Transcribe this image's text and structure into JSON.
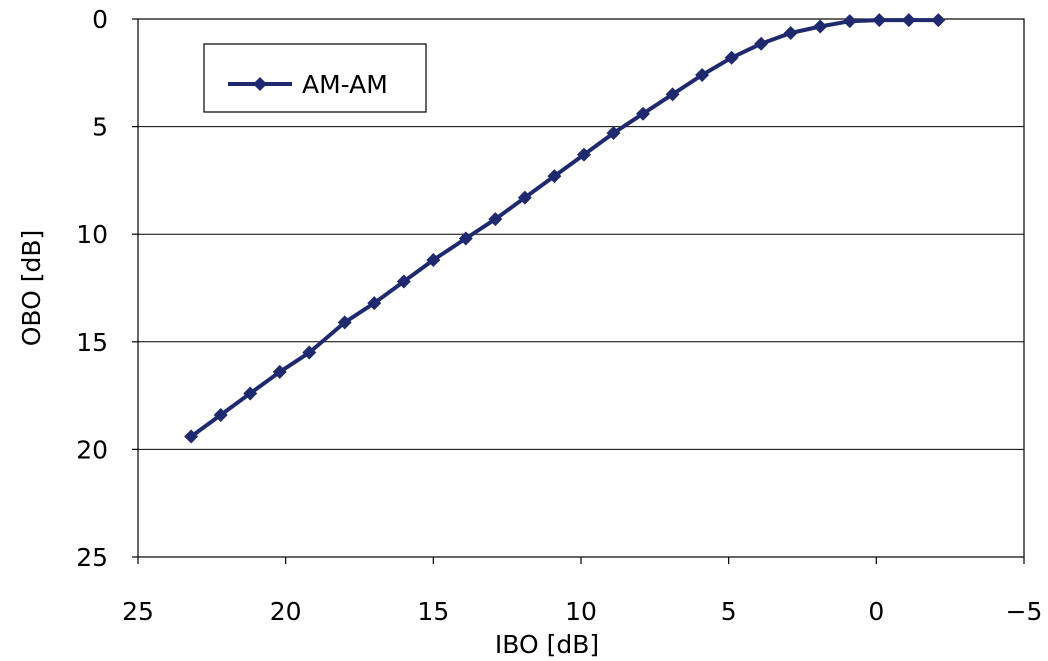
{
  "chart_data": {
    "type": "line",
    "title": "",
    "xlabel": "IBO [dB]",
    "ylabel": "OBO [dB]",
    "xlim": [
      25,
      -5
    ],
    "ylim": [
      0,
      25
    ],
    "x_reversed": true,
    "y_reversed": true,
    "x_ticks": [
      "25",
      "20",
      "15",
      "10",
      "5",
      "0",
      "−5"
    ],
    "y_ticks": [
      "0",
      "5",
      "10",
      "15",
      "20",
      "25"
    ],
    "grid": "horizontal",
    "legend_position": "top-left",
    "series": [
      {
        "name": "AM-AM",
        "color": "#1f2a6e",
        "marker": "diamond",
        "points": [
          [
            23.2,
            19.4
          ],
          [
            22.2,
            18.4
          ],
          [
            21.2,
            17.4
          ],
          [
            20.2,
            16.4
          ],
          [
            19.2,
            15.5
          ],
          [
            18.0,
            14.1
          ],
          [
            17.0,
            13.2
          ],
          [
            16.0,
            12.2
          ],
          [
            15.0,
            11.2
          ],
          [
            13.9,
            10.2
          ],
          [
            12.9,
            9.3
          ],
          [
            11.9,
            8.3
          ],
          [
            10.9,
            7.3
          ],
          [
            9.9,
            6.3
          ],
          [
            8.9,
            5.3
          ],
          [
            7.9,
            4.4
          ],
          [
            6.9,
            3.5
          ],
          [
            5.9,
            2.6
          ],
          [
            4.9,
            1.8
          ],
          [
            3.9,
            1.15
          ],
          [
            2.9,
            0.65
          ],
          [
            1.9,
            0.35
          ],
          [
            0.9,
            0.1
          ],
          [
            -0.1,
            0.05
          ],
          [
            -1.1,
            0.05
          ],
          [
            -2.1,
            0.05
          ]
        ]
      }
    ]
  }
}
